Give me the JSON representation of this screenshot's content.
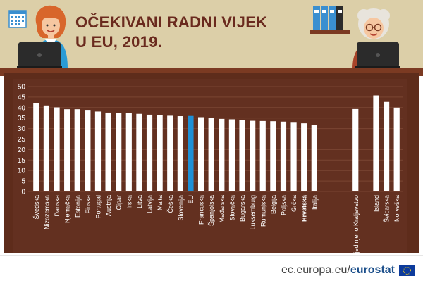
{
  "title": {
    "line1": "OČEKIVANI RADNI VIJEK",
    "line2": "U EU, 2019."
  },
  "footer": {
    "site_prefix": "ec.europa.eu/",
    "site_brand": "eurostat"
  },
  "icons": [
    "calendar-icon",
    "woman-figure-icon",
    "laptop-icon",
    "binders-icon",
    "elderly-woman-figure-icon"
  ],
  "colors": {
    "bar": "#ffffff",
    "highlight": "#1e90d6",
    "board": "#633020",
    "grid": "#7a4532",
    "axis_text": "#ffffff",
    "title": "#6a2a1e",
    "banner": "#dccfa8"
  },
  "chart_data": {
    "type": "bar",
    "ylim": [
      0,
      50
    ],
    "yticks": [
      0,
      5,
      10,
      15,
      20,
      25,
      30,
      35,
      40,
      45,
      50
    ],
    "grid": true,
    "highlight": [
      "EU"
    ],
    "bold_label": [
      "Hrvatska"
    ],
    "groups": [
      {
        "categories": [
          "Švedska",
          "Nizozemska",
          "Danska",
          "Njemačka",
          "Estonija",
          "Finska",
          "Portugal",
          "Austrija",
          "Cipar",
          "Irska",
          "Litva",
          "Latvija",
          "Malta",
          "Češka",
          "Slovenija",
          "EU",
          "Francuska",
          "Španjolska",
          "Mađarska",
          "Slovačka",
          "Bugarska",
          "Luksemburg",
          "Rumunjska",
          "Belgija",
          "Poljska",
          "Grčka",
          "Hrvatska",
          "Italija"
        ],
        "values": [
          42.0,
          41.0,
          40.1,
          39.2,
          39.2,
          38.9,
          38.1,
          37.6,
          37.5,
          37.4,
          37.0,
          36.6,
          36.3,
          36.1,
          35.9,
          36.0,
          35.4,
          35.1,
          34.6,
          34.4,
          34.0,
          33.7,
          33.6,
          33.5,
          33.3,
          32.8,
          32.5,
          31.8
        ]
      },
      {
        "categories": [
          "Ujedinjeno Kraljevstvo"
        ],
        "values": [
          39.3
        ]
      },
      {
        "categories": [
          "Island",
          "Švicarska",
          "Norveška"
        ],
        "values": [
          45.8,
          42.7,
          40.0
        ]
      }
    ]
  }
}
